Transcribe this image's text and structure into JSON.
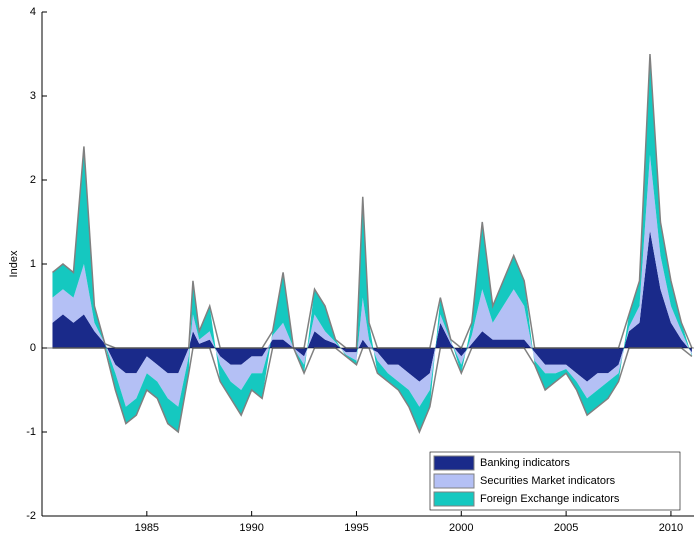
{
  "chart_data": {
    "type": "stacked-area",
    "y_label": "Index",
    "x": [
      1980.5,
      1981.0,
      1981.5,
      1982.0,
      1982.5,
      1983.0,
      1983.5,
      1984.0,
      1984.5,
      1985.0,
      1985.5,
      1986.0,
      1986.5,
      1987.0,
      1987.2,
      1987.5,
      1988.0,
      1988.5,
      1989.0,
      1989.5,
      1990.0,
      1990.5,
      1991.0,
      1991.5,
      1992.0,
      1992.5,
      1993.0,
      1993.5,
      1994.0,
      1994.5,
      1995.0,
      1995.3,
      1995.6,
      1996.0,
      1996.5,
      1997.0,
      1997.5,
      1998.0,
      1998.5,
      1999.0,
      1999.5,
      2000.0,
      2000.5,
      2001.0,
      2001.5,
      2002.0,
      2002.5,
      2003.0,
      2003.5,
      2004.0,
      2004.5,
      2005.0,
      2005.5,
      2006.0,
      2006.5,
      2007.0,
      2007.5,
      2008.0,
      2008.5,
      2009.0,
      2009.5,
      2010.0,
      2010.5,
      2011.0
    ],
    "series": [
      {
        "name": "Banking indicators",
        "color": "#1a2a8a",
        "values": [
          0.3,
          0.4,
          0.3,
          0.4,
          0.2,
          0.05,
          -0.2,
          -0.3,
          -0.3,
          -0.1,
          -0.2,
          -0.3,
          -0.3,
          0,
          0.2,
          0.05,
          0.1,
          -0.1,
          -0.2,
          -0.2,
          -0.1,
          -0.1,
          0.1,
          0.1,
          0,
          -0.1,
          0.2,
          0.1,
          0.05,
          -0.05,
          -0.05,
          0.1,
          0,
          -0.05,
          -0.2,
          -0.2,
          -0.3,
          -0.4,
          -0.3,
          0.3,
          0.05,
          -0.1,
          0.05,
          0.2,
          0.1,
          0.1,
          0.1,
          0.1,
          -0.05,
          -0.2,
          -0.2,
          -0.2,
          -0.3,
          -0.4,
          -0.3,
          -0.3,
          -0.2,
          0.2,
          0.3,
          1.4,
          0.7,
          0.3,
          0.1,
          -0.05
        ]
      },
      {
        "name": "Securities Market indicators",
        "color": "#b4c0f5",
        "values": [
          0.3,
          0.3,
          0.3,
          0.6,
          0.1,
          0,
          -0.1,
          -0.4,
          -0.3,
          -0.2,
          -0.2,
          -0.3,
          -0.4,
          -0.1,
          0.2,
          0.05,
          0.1,
          -0.1,
          -0.2,
          -0.3,
          -0.2,
          -0.2,
          0.05,
          0.2,
          0,
          -0.1,
          0.2,
          0.1,
          0.02,
          -0.03,
          -0.1,
          0.5,
          0.1,
          -0.1,
          -0.1,
          -0.2,
          -0.2,
          -0.3,
          -0.2,
          0.1,
          0.03,
          -0.1,
          0.1,
          0.5,
          0.2,
          0.4,
          0.6,
          0.4,
          -0.1,
          -0.1,
          -0.1,
          -0.05,
          -0.1,
          -0.2,
          -0.2,
          -0.1,
          -0.1,
          0.05,
          0.2,
          0.9,
          0.4,
          0.2,
          0.1,
          -0.03
        ]
      },
      {
        "name": "Foreign Exchange indicators",
        "color": "#15c8c0",
        "values": [
          0.3,
          0.3,
          0.3,
          1.4,
          0.2,
          0,
          -0.2,
          -0.2,
          -0.2,
          -0.2,
          -0.2,
          -0.3,
          -0.3,
          -0.2,
          0.4,
          0.1,
          0.3,
          -0.2,
          -0.2,
          -0.3,
          -0.2,
          -0.3,
          0.05,
          0.6,
          0,
          -0.1,
          0.3,
          0.3,
          0.03,
          -0.02,
          -0.05,
          1.2,
          0.2,
          -0.15,
          -0.1,
          -0.1,
          -0.2,
          -0.3,
          -0.2,
          0.2,
          0.02,
          -0.1,
          0.15,
          0.8,
          0.2,
          0.3,
          0.4,
          0.3,
          -0.05,
          -0.2,
          -0.1,
          -0.05,
          -0.1,
          -0.2,
          -0.2,
          -0.2,
          -0.1,
          0.15,
          0.3,
          1.2,
          0.4,
          0.3,
          0.1,
          -0.02
        ]
      }
    ],
    "xlim": [
      1980,
      2011.1
    ],
    "xticks": [
      1985,
      1990,
      1995,
      2000,
      2005,
      2010
    ],
    "ylim": [
      -2,
      4
    ],
    "yticks": [
      -2,
      -1,
      0,
      1,
      2,
      3,
      4
    ],
    "legend": "lower right"
  }
}
